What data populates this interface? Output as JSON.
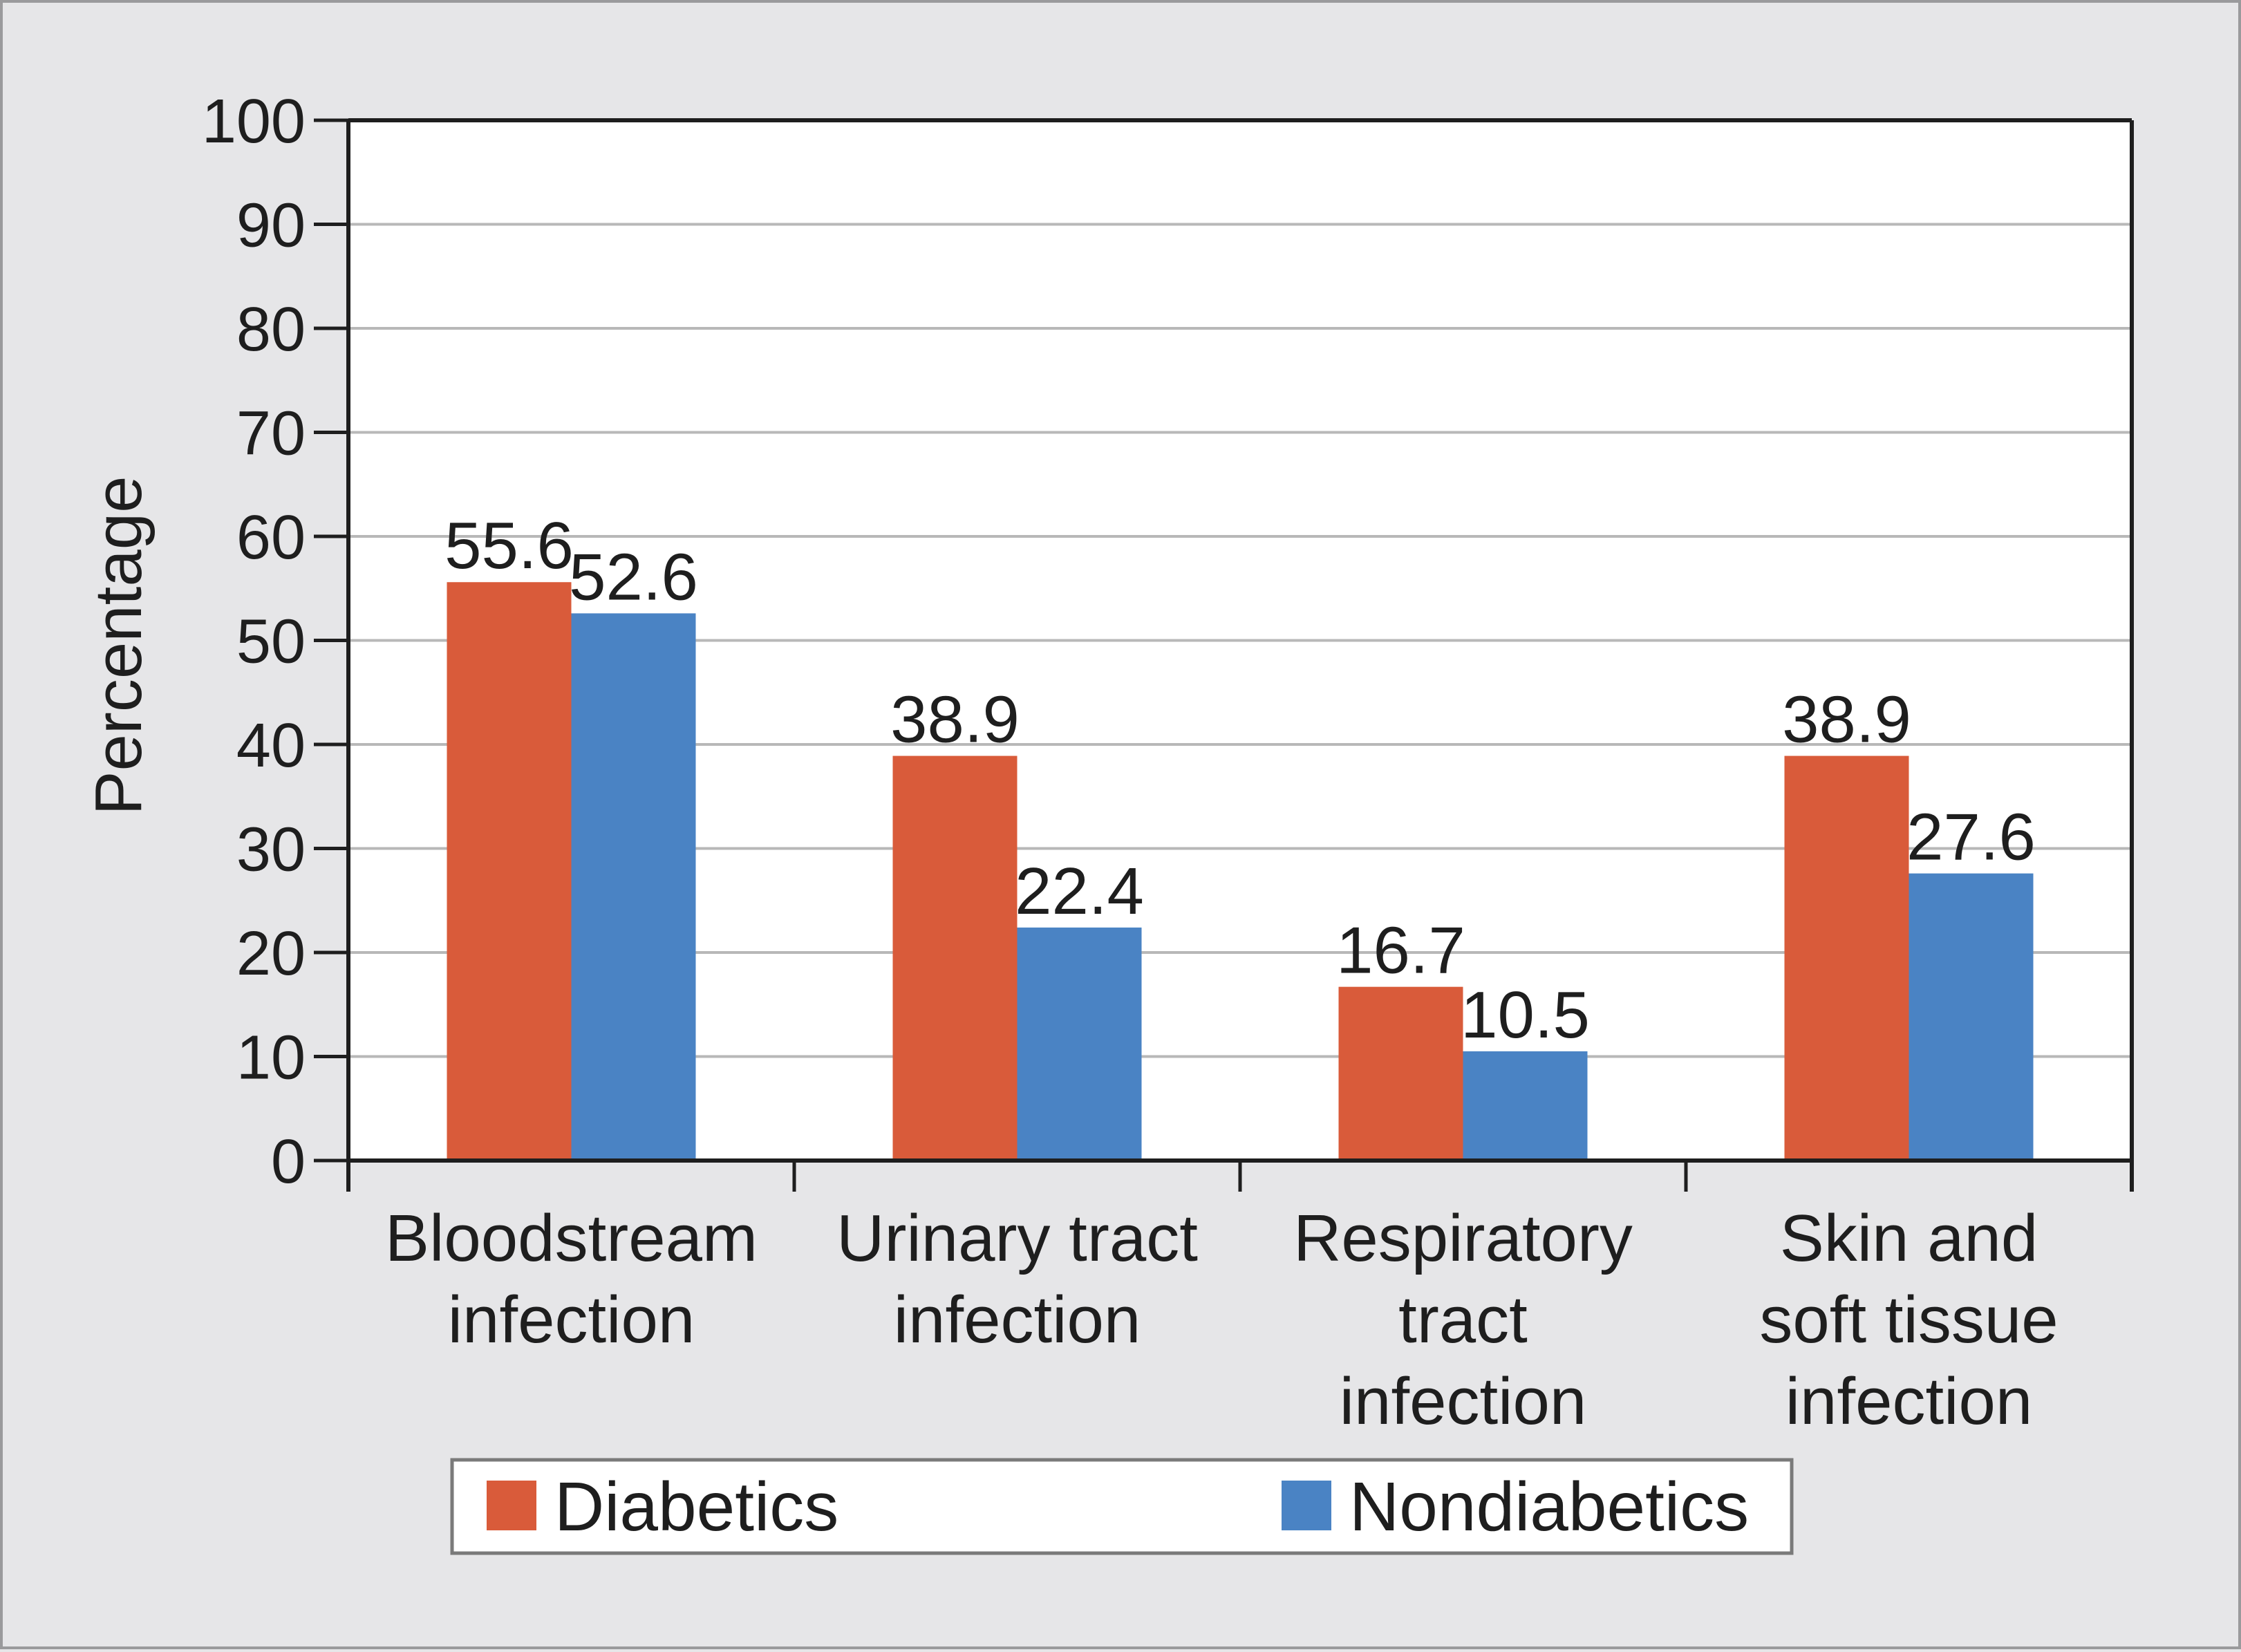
{
  "chart_data": {
    "type": "bar",
    "title": "",
    "xlabel": "",
    "ylabel": "Percentage",
    "ylim": [
      0,
      100
    ],
    "yticks": [
      0,
      10,
      20,
      30,
      40,
      50,
      60,
      70,
      80,
      90,
      100
    ],
    "grid": true,
    "legend_position": "bottom",
    "categories": [
      [
        "Bloodstream",
        "infection"
      ],
      [
        "Urinary tract",
        "infection"
      ],
      [
        "Respiratory",
        "tract",
        "infection"
      ],
      [
        "Skin and",
        "soft tissue",
        "infection"
      ]
    ],
    "series": [
      {
        "name": "Diabetics",
        "color": "#d95b3a",
        "values": [
          55.6,
          38.9,
          16.7,
          38.9
        ],
        "labels": [
          "55.6",
          "38.9",
          "16.7",
          "38.9"
        ]
      },
      {
        "name": "Nondiabetics",
        "color": "#4a83c4",
        "values": [
          52.6,
          22.4,
          10.5,
          27.6
        ],
        "labels": [
          "52.6",
          "22.4",
          "10.5",
          "27.6"
        ]
      }
    ]
  }
}
